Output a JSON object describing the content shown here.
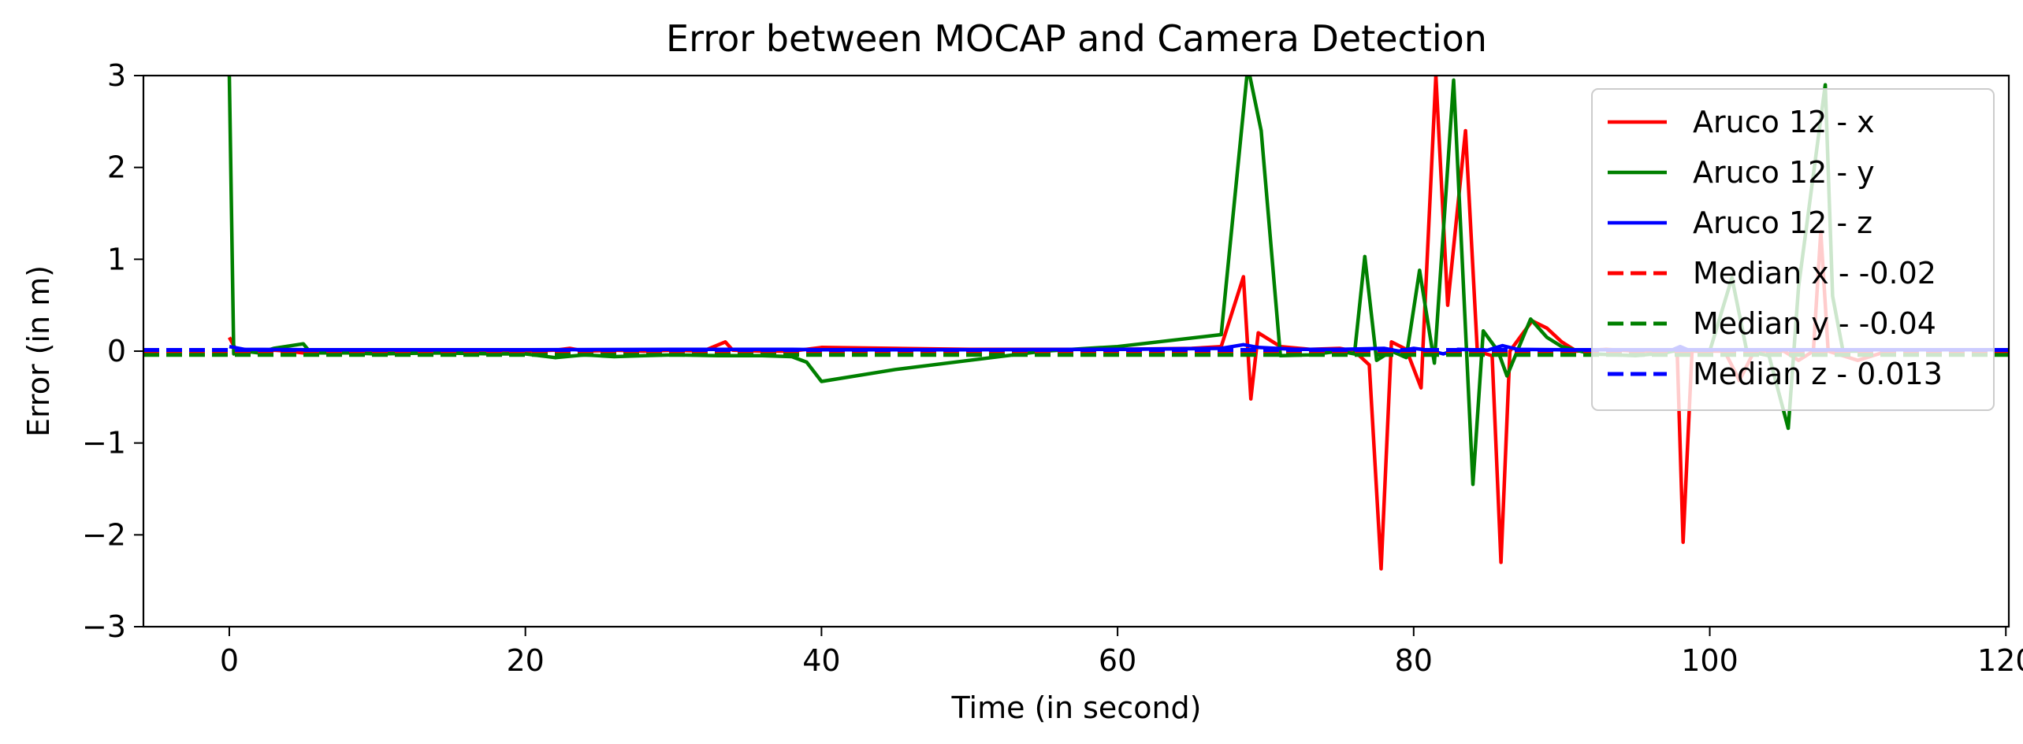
{
  "chart_data": {
    "type": "line",
    "title": "Error between MOCAP and Camera Detection",
    "xlabel": "Time (in second)",
    "ylabel": "Error (in m)",
    "xlim": [
      -5.8,
      120.2
    ],
    "ylim": [
      -3,
      3
    ],
    "xticks": [
      0,
      20,
      40,
      60,
      80,
      100,
      120
    ],
    "yticks": [
      -3,
      -2,
      -1,
      0,
      1,
      2,
      3
    ],
    "ytick_labels": [
      "−3",
      "−2",
      "−1",
      "0",
      "1",
      "2",
      "3"
    ],
    "grid": false,
    "legend_position": "top-right",
    "series": [
      {
        "name": "Aruco 12 - x",
        "color": "#ff0000",
        "style": "solid",
        "points": [
          [
            0,
            0.15
          ],
          [
            0.5,
            0.0
          ],
          [
            1,
            0.02
          ],
          [
            2,
            -0.01
          ],
          [
            3,
            0.01
          ],
          [
            4,
            0.0
          ],
          [
            5,
            -0.02
          ],
          [
            6,
            0.01
          ],
          [
            8,
            0.0
          ],
          [
            10,
            0.01
          ],
          [
            14,
            0.0
          ],
          [
            18,
            0.01
          ],
          [
            20,
            0.0
          ],
          [
            22,
            0.01
          ],
          [
            23,
            0.03
          ],
          [
            24,
            0.0
          ],
          [
            26,
            0.01
          ],
          [
            28,
            0.0
          ],
          [
            30,
            0.01
          ],
          [
            32,
            0.0
          ],
          [
            33.5,
            0.1
          ],
          [
            34,
            0.01
          ],
          [
            36,
            0.0
          ],
          [
            38,
            0.0
          ],
          [
            40,
            0.04
          ],
          [
            45,
            0.03
          ],
          [
            50,
            0.02
          ],
          [
            55,
            0.02
          ],
          [
            60,
            0.02
          ],
          [
            65,
            0.03
          ],
          [
            67,
            0.05
          ],
          [
            68.5,
            0.81
          ],
          [
            69,
            -0.52
          ],
          [
            69.5,
            0.2
          ],
          [
            71,
            0.05
          ],
          [
            73,
            0.02
          ],
          [
            75,
            0.03
          ],
          [
            76,
            0.0
          ],
          [
            77,
            -0.15
          ],
          [
            77.8,
            -2.37
          ],
          [
            78.5,
            0.1
          ],
          [
            79.5,
            0.02
          ],
          [
            80.5,
            -0.4
          ],
          [
            81.5,
            3.0
          ],
          [
            82.3,
            0.5
          ],
          [
            83.5,
            2.4
          ],
          [
            84.3,
            0.0
          ],
          [
            85.3,
            -0.05
          ],
          [
            85.9,
            -2.3
          ],
          [
            86.5,
            0.0
          ],
          [
            88,
            0.33
          ],
          [
            89,
            0.25
          ],
          [
            90,
            0.1
          ],
          [
            91,
            0.0
          ],
          [
            93,
            0.02
          ],
          [
            95,
            0.0
          ],
          [
            97,
            0.0
          ],
          [
            97.8,
            0.0
          ],
          [
            98.2,
            -2.08
          ],
          [
            98.8,
            0.0
          ],
          [
            101,
            0.0
          ],
          [
            102,
            -0.32
          ],
          [
            103,
            0.0
          ],
          [
            105,
            0.0
          ],
          [
            106,
            -0.1
          ],
          [
            107,
            0.0
          ],
          [
            107.5,
            1.3
          ],
          [
            108,
            0.0
          ],
          [
            110,
            -0.1
          ],
          [
            112,
            0.0
          ]
        ]
      },
      {
        "name": "Aruco 12 - y",
        "color": "#008000",
        "style": "solid",
        "points": [
          [
            0,
            3.0
          ],
          [
            0.3,
            -0.03
          ],
          [
            1,
            0.0
          ],
          [
            2,
            -0.02
          ],
          [
            3,
            0.03
          ],
          [
            5,
            0.08
          ],
          [
            5.5,
            -0.02
          ],
          [
            8,
            -0.02
          ],
          [
            10,
            -0.03
          ],
          [
            14,
            -0.02
          ],
          [
            18,
            -0.03
          ],
          [
            20,
            -0.03
          ],
          [
            22,
            -0.07
          ],
          [
            24,
            -0.04
          ],
          [
            26,
            -0.06
          ],
          [
            28,
            -0.05
          ],
          [
            30,
            -0.04
          ],
          [
            33,
            -0.05
          ],
          [
            36,
            -0.05
          ],
          [
            38,
            -0.06
          ],
          [
            39,
            -0.12
          ],
          [
            40,
            -0.33
          ],
          [
            45,
            -0.2
          ],
          [
            50,
            -0.1
          ],
          [
            55,
            0.0
          ],
          [
            60,
            0.05
          ],
          [
            67,
            0.18
          ],
          [
            68.8,
            3.1
          ],
          [
            69.7,
            2.4
          ],
          [
            71,
            -0.05
          ],
          [
            73,
            -0.04
          ],
          [
            75,
            0.0
          ],
          [
            76,
            -0.03
          ],
          [
            76.7,
            1.03
          ],
          [
            77.5,
            -0.1
          ],
          [
            78.5,
            0.0
          ],
          [
            79.5,
            -0.07
          ],
          [
            80.4,
            0.88
          ],
          [
            81.4,
            -0.13
          ],
          [
            82.7,
            2.95
          ],
          [
            84,
            -1.45
          ],
          [
            84.7,
            0.22
          ],
          [
            85.7,
            0.0
          ],
          [
            86.3,
            -0.27
          ],
          [
            87.9,
            0.35
          ],
          [
            89,
            0.15
          ],
          [
            90,
            0.05
          ],
          [
            92,
            -0.03
          ],
          [
            95,
            -0.05
          ],
          [
            97,
            -0.02
          ],
          [
            98,
            0.02
          ],
          [
            100,
            0.0
          ],
          [
            101.5,
            0.8
          ],
          [
            102.5,
            0.0
          ],
          [
            104,
            -0.05
          ],
          [
            105.3,
            -0.84
          ],
          [
            106,
            0.7
          ],
          [
            107.8,
            2.9
          ],
          [
            108.3,
            0.6
          ],
          [
            109,
            0.0
          ],
          [
            110,
            0.0
          ]
        ]
      },
      {
        "name": "Aruco 12 - z",
        "color": "#0000ff",
        "style": "solid",
        "points": [
          [
            0,
            0.05
          ],
          [
            1,
            0.02
          ],
          [
            5,
            0.015
          ],
          [
            10,
            0.015
          ],
          [
            20,
            0.015
          ],
          [
            30,
            0.02
          ],
          [
            38,
            0.02
          ],
          [
            40,
            0.015
          ],
          [
            50,
            0.015
          ],
          [
            60,
            0.02
          ],
          [
            67,
            0.03
          ],
          [
            68.5,
            0.07
          ],
          [
            69.5,
            0.04
          ],
          [
            72,
            0.02
          ],
          [
            75,
            0.02
          ],
          [
            78,
            0.03
          ],
          [
            79,
            0.0
          ],
          [
            80,
            0.03
          ],
          [
            81,
            0.01
          ],
          [
            82,
            -0.03
          ],
          [
            83,
            0.02
          ],
          [
            85,
            0.01
          ],
          [
            86,
            0.06
          ],
          [
            87,
            0.02
          ],
          [
            90,
            0.015
          ],
          [
            95,
            0.015
          ],
          [
            97.5,
            0.015
          ],
          [
            98,
            0.05
          ],
          [
            98.5,
            0.015
          ],
          [
            105,
            0.015
          ],
          [
            110,
            0.015
          ],
          [
            120,
            0.015
          ]
        ]
      },
      {
        "name": "Median x - -0.02",
        "color": "#ff0000",
        "style": "dashed",
        "points": [
          [
            -5.8,
            -0.02
          ],
          [
            120.2,
            -0.02
          ]
        ]
      },
      {
        "name": "Median y - -0.04",
        "color": "#008000",
        "style": "dashed",
        "points": [
          [
            -5.8,
            -0.04
          ],
          [
            120.2,
            -0.04
          ]
        ]
      },
      {
        "name": "Median z - 0.013",
        "color": "#0000ff",
        "style": "dashed",
        "points": [
          [
            -5.8,
            0.013
          ],
          [
            120.2,
            0.013
          ]
        ]
      }
    ]
  }
}
